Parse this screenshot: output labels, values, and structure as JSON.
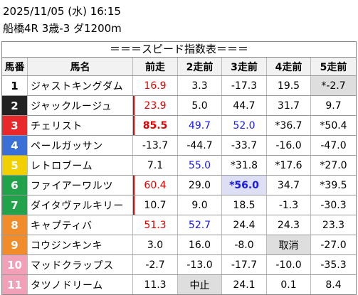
{
  "header": {
    "datetime": "2025/11/05 (水) 16:15",
    "race": "船橋4R 3歳-3 ダ1200m"
  },
  "table": {
    "title": "＝＝＝スピード指数表＝＝＝",
    "columns": [
      "馬番",
      "馬名",
      "前走",
      "2走前",
      "3走前",
      "4走前",
      "5走前"
    ],
    "rows": [
      {
        "num": "1",
        "name": "ジャストキングダム",
        "bg": "#ffffff",
        "fg": "#000000",
        "cells": [
          "16.9",
          "3.3",
          "-17.3",
          "19.5",
          "*-2.7"
        ],
        "colors": [
          "red",
          "",
          "",
          "",
          ""
        ],
        "bolds": [
          false,
          false,
          false,
          false,
          false
        ],
        "shades": [
          "",
          "",
          "",
          "",
          "gray"
        ]
      },
      {
        "num": "2",
        "name": "ジャックルージュ",
        "bg": "#222222",
        "fg": "#ffffff",
        "cells": [
          "23.9",
          "5.0",
          "44.7",
          "31.7",
          "9.7"
        ],
        "colors": [
          "red",
          "",
          "",
          "",
          ""
        ],
        "bolds": [
          false,
          false,
          false,
          false,
          false
        ],
        "shades": [
          "",
          "",
          "",
          "",
          ""
        ]
      },
      {
        "num": "3",
        "name": "チェリスト",
        "bg": "#e8282a",
        "fg": "#ffffff",
        "cells": [
          "85.5",
          "49.7",
          "52.0",
          "*36.7",
          "*50.4"
        ],
        "colors": [
          "red",
          "blue",
          "blue",
          "",
          ""
        ],
        "bolds": [
          true,
          false,
          false,
          false,
          false
        ],
        "shades": [
          "",
          "",
          "",
          "",
          ""
        ]
      },
      {
        "num": "4",
        "name": "ペールガッサン",
        "bg": "#3a6fd8",
        "fg": "#ffffff",
        "cells": [
          "-13.7",
          "-44.7",
          "-33.7",
          "-16.0",
          "-47.0"
        ],
        "colors": [
          "",
          "",
          "",
          "",
          ""
        ],
        "bolds": [
          false,
          false,
          false,
          false,
          false
        ],
        "shades": [
          "",
          "",
          "",
          "",
          ""
        ]
      },
      {
        "num": "5",
        "name": "レトロブーム",
        "bg": "#f2d000",
        "fg": "#ffffff",
        "cells": [
          "7.1",
          "55.0",
          "*31.8",
          "*17.6",
          "*27.0"
        ],
        "colors": [
          "",
          "blue",
          "",
          "",
          ""
        ],
        "bolds": [
          false,
          false,
          false,
          false,
          false
        ],
        "shades": [
          "",
          "",
          "",
          "",
          ""
        ]
      },
      {
        "num": "6",
        "name": "ファイアーワルツ",
        "bg": "#22a24a",
        "fg": "#ffffff",
        "cells": [
          "60.4",
          "29.0",
          "*56.0",
          "34.7",
          "*39.5"
        ],
        "colors": [
          "red",
          "",
          "blue",
          "",
          ""
        ],
        "bolds": [
          false,
          false,
          true,
          false,
          false
        ],
        "shades": [
          "",
          "",
          "lav",
          "",
          ""
        ]
      },
      {
        "num": "7",
        "name": "ダイタヴァルキリー",
        "bg": "#22a24a",
        "fg": "#ffffff",
        "cells": [
          "10.7",
          "9.0",
          "18.5",
          "-1.3",
          "-30.3"
        ],
        "colors": [
          "",
          "",
          "",
          "",
          ""
        ],
        "bolds": [
          false,
          false,
          false,
          false,
          false
        ],
        "shades": [
          "",
          "",
          "",
          "",
          ""
        ]
      },
      {
        "num": "8",
        "name": "キャプティバ",
        "bg": "#f08c2a",
        "fg": "#ffffff",
        "cells": [
          "51.3",
          "52.7",
          "24.4",
          "24.3",
          "23.3"
        ],
        "colors": [
          "red",
          "blue",
          "",
          "",
          ""
        ],
        "bolds": [
          false,
          false,
          false,
          false,
          false
        ],
        "shades": [
          "",
          "",
          "",
          "",
          ""
        ]
      },
      {
        "num": "9",
        "name": "コウジンキンキ",
        "bg": "#f08c2a",
        "fg": "#ffffff",
        "cells": [
          "3.0",
          "16.0",
          "-8.0",
          "取消",
          "-27.0"
        ],
        "colors": [
          "",
          "",
          "",
          "",
          ""
        ],
        "bolds": [
          false,
          false,
          false,
          false,
          false
        ],
        "shades": [
          "",
          "",
          "",
          "gray",
          ""
        ]
      },
      {
        "num": "10",
        "name": "マッドクラップス",
        "bg": "#f2a0b8",
        "fg": "#ffffff",
        "cells": [
          "-2.7",
          "-13.0",
          "-17.7",
          "-10.0",
          "-35.3"
        ],
        "colors": [
          "",
          "",
          "",
          "",
          ""
        ],
        "bolds": [
          false,
          false,
          false,
          false,
          false
        ],
        "shades": [
          "",
          "",
          "",
          "",
          ""
        ]
      },
      {
        "num": "11",
        "name": "タツノドリーム",
        "bg": "#f2a0b8",
        "fg": "#ffffff",
        "cells": [
          "11.3",
          "中止",
          "24.1",
          "0.1",
          "8.4"
        ],
        "colors": [
          "",
          "",
          "",
          "",
          ""
        ],
        "bolds": [
          false,
          false,
          false,
          false,
          false
        ],
        "shades": [
          "",
          "gray",
          "",
          "",
          ""
        ]
      }
    ],
    "red_bar_rows": [
      1,
      2,
      5,
      6
    ]
  }
}
